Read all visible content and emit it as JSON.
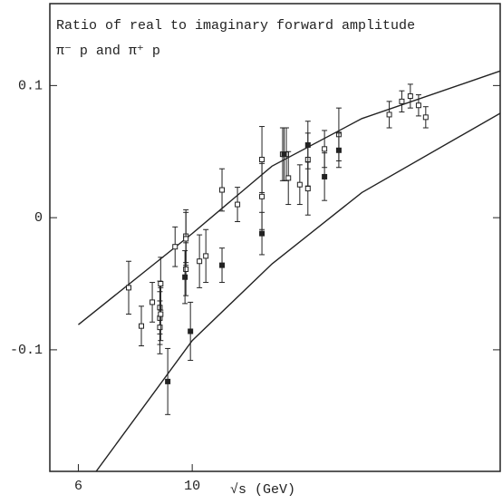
{
  "chart_data": {
    "type": "scatter",
    "title": "Ratio of real to imaginary forward amplitude",
    "subtitle": "π⁻ p    and    π⁺ p",
    "x_label": "√s   (GeV)",
    "log_x": true,
    "xlim": [
      5.28,
      39.8
    ],
    "xticks": [
      6,
      10
    ],
    "ylim": [
      -0.192,
      0.162
    ],
    "yticks": [
      -0.1,
      0,
      0.1
    ],
    "color": "#222222",
    "open_points": {
      "x": [
        7.52,
        7.96,
        8.36,
        8.65,
        8.65,
        8.65,
        8.68,
        8.68,
        9.26,
        9.72,
        9.72,
        9.72,
        10.33,
        10.63,
        11.43,
        12.25,
        13.67,
        13.67,
        15.0,
        15.25,
        15.39,
        16.2,
        16.8,
        16.8,
        18.1,
        19.3,
        24.2,
        25.6,
        26.6,
        27.6,
        28.5
      ],
      "y": [
        -0.053,
        -0.082,
        -0.064,
        -0.068,
        -0.076,
        -0.083,
        -0.05,
        -0.073,
        -0.022,
        -0.014,
        -0.016,
        -0.039,
        -0.033,
        -0.029,
        0.021,
        0.01,
        0.044,
        0.016,
        0.048,
        0.048,
        0.03,
        0.025,
        0.044,
        0.022,
        0.052,
        0.063,
        0.078,
        0.088,
        0.092,
        0.085,
        0.076
      ],
      "err": [
        0.02,
        0.015,
        0.015,
        0.02,
        0.02,
        0.02,
        0.02,
        0.02,
        0.015,
        0.02,
        0.02,
        0.02,
        0.02,
        0.02,
        0.016,
        0.013,
        0.025,
        0.025,
        0.02,
        0.02,
        0.02,
        0.015,
        0.02,
        0.02,
        0.014,
        0.02,
        0.01,
        0.008,
        0.009,
        0.008,
        0.008
      ]
    },
    "filled_points": {
      "x": [
        8.96,
        9.68,
        9.92,
        11.43,
        13.67,
        15.1,
        16.8,
        18.1,
        19.3
      ],
      "y": [
        -0.124,
        -0.045,
        -0.086,
        -0.036,
        -0.012,
        0.048,
        0.055,
        0.031,
        0.051
      ],
      "err": [
        0.025,
        0.02,
        0.022,
        0.013,
        0.016,
        0.02,
        0.018,
        0.018,
        0.013
      ]
    },
    "curves": [
      {
        "x": [
          6,
          10,
          14.3,
          21.4,
          39.8
        ],
        "y": [
          -0.081,
          -0.012,
          0.039,
          0.075,
          0.111
        ]
      },
      {
        "x": [
          6.5,
          10,
          14.3,
          21.4,
          39.8
        ],
        "y": [
          -0.192,
          -0.093,
          -0.035,
          0.019,
          0.079
        ]
      }
    ]
  }
}
